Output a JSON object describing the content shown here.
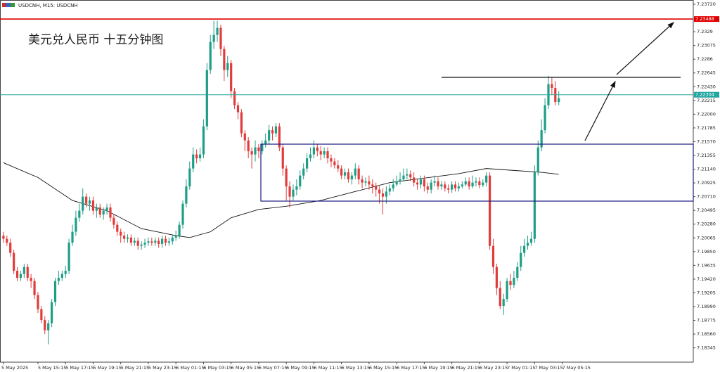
{
  "chart_data": {
    "type": "candlestick",
    "header": "USDCNH, M15:  USDCNH",
    "annotation": "美元兑人民币 十五分钟图",
    "up_color": "#1e9e86",
    "down_color": "#e23b3b",
    "xlim": [
      -1,
      200
    ],
    "ylim": [
      7.18121,
      7.23786
    ],
    "xticks": [
      {
        "value": 0,
        "label": "5 May 2025"
      },
      {
        "value": 10,
        "label": "5 May 15:15"
      },
      {
        "value": 18,
        "label": "5 May 17:15"
      },
      {
        "value": 26,
        "label": "5 May 19:15"
      },
      {
        "value": 34,
        "label": "5 May 21:15"
      },
      {
        "value": 42,
        "label": "5 May 23:15"
      },
      {
        "value": 50,
        "label": "6 May 01:15"
      },
      {
        "value": 58,
        "label": "6 May 03:15"
      },
      {
        "value": 66,
        "label": "6 May 05:15"
      },
      {
        "value": 74,
        "label": "6 May 07:15"
      },
      {
        "value": 82,
        "label": "6 May 09:15"
      },
      {
        "value": 90,
        "label": "6 May 11:15"
      },
      {
        "value": 98,
        "label": "6 May 13:15"
      },
      {
        "value": 106,
        "label": "6 May 15:15"
      },
      {
        "value": 114,
        "label": "6 May 17:15"
      },
      {
        "value": 122,
        "label": "6 May 19:15"
      },
      {
        "value": 130,
        "label": "6 May 21:15"
      },
      {
        "value": 138,
        "label": "6 May 23:15"
      },
      {
        "value": 146,
        "label": "7 May 01:15"
      },
      {
        "value": 154,
        "label": "7 May 03:15"
      },
      {
        "value": 162,
        "label": "7 May 05:15"
      }
    ],
    "yticks": [
      {
        "value": 7.2372,
        "label": "7.23720"
      },
      7.2329,
      7.23075,
      7.2286,
      7.22645,
      {
        "value": 7.2243,
        "label": "7.22430"
      },
      7.22215,
      {
        "value": 7.22,
        "label": "7.22000"
      },
      7.21785,
      {
        "value": 7.2157,
        "label": "7.21570"
      },
      7.21355,
      {
        "value": 7.2114,
        "label": "7.21140"
      },
      7.20925,
      {
        "value": 7.2071,
        "label": "7.20710"
      },
      7.20495,
      {
        "value": 7.2028,
        "label": "7.20280"
      },
      7.20065,
      {
        "value": 7.1985,
        "label": "7.19850"
      },
      7.19635,
      {
        "value": 7.1942,
        "label": "7.19420"
      },
      7.19205,
      {
        "value": 7.1899,
        "label": "7.18990"
      },
      7.18775,
      {
        "value": 7.1856,
        "label": "7.18560"
      },
      7.18345
    ],
    "resistance_line": 7.23488,
    "resistance_color": "#e00000",
    "price_line": 7.22304,
    "price_color": "#22a6a0",
    "open": [
      7.201,
      7.2005,
      7.1999,
      7.1983,
      7.1955,
      7.1944,
      7.195,
      7.1961,
      7.1944,
      7.1939,
      7.1917,
      7.1895,
      7.1878,
      7.1862,
      7.1873,
      7.1906,
      7.1939,
      7.1944,
      7.195,
      7.1955,
      7.1999,
      7.2016,
      7.2038,
      7.2049,
      7.2071,
      7.206,
      7.2065,
      7.2049,
      7.2054,
      7.2043,
      7.2049,
      7.2054,
      7.2038,
      7.2027,
      7.2016,
      7.201,
      7.2005,
      7.2007,
      7.1999,
      7.2002,
      7.1994,
      7.1996,
      7.1999,
      7.2001,
      7.1999,
      7.2002,
      7.1997,
      7.2005,
      7.1999,
      7.2001,
      7.2007,
      7.201,
      7.2027,
      7.206,
      7.2087,
      7.2115,
      7.2137,
      7.2131,
      7.2137,
      7.2181,
      7.2269,
      7.2313,
      7.2324,
      7.2335,
      7.2302,
      7.2269,
      7.228,
      7.2236,
      7.2214,
      7.2203,
      7.217,
      7.2159,
      7.2142,
      7.2137,
      7.2148,
      7.2142,
      7.2153,
      7.2159,
      7.2175,
      7.217,
      7.2181,
      7.2148,
      7.2115,
      7.2087,
      7.2071,
      7.2082,
      7.2087,
      7.2104,
      7.2115,
      7.2131,
      7.2137,
      7.2148,
      7.2142,
      7.2137,
      7.2142,
      7.2131,
      7.2126,
      7.212,
      7.2115,
      7.2104,
      7.2109,
      7.2098,
      7.2104,
      7.2115,
      7.2098,
      7.2093,
      7.2095,
      7.209,
      7.2087,
      7.2082,
      7.2076,
      7.2071,
      7.2079,
      7.2084,
      7.209,
      7.2095,
      7.2098,
      7.2104,
      7.2106,
      7.2101,
      7.2093,
      7.209,
      7.2098,
      7.2087,
      7.2082,
      7.2093,
      7.2095,
      7.2087,
      7.209,
      7.2084,
      7.2082,
      7.209,
      7.2084,
      7.2087,
      7.209,
      7.2095,
      7.2087,
      7.2093,
      7.2095,
      7.2089,
      7.2093,
      7.2104,
      7.1994,
      7.1961,
      7.1928,
      7.19,
      7.1911,
      7.1939,
      7.1933,
      7.1944,
      7.1961,
      7.1983,
      7.1994,
      7.1999,
      7.2005,
      7.2109,
      7.2148,
      7.2175,
      7.2214,
      7.2247,
      7.2241,
      7.2219
    ],
    "high": [
      7.2016,
      7.201,
      7.2005,
      7.1988,
      7.1961,
      7.1955,
      7.1966,
      7.1966,
      7.195,
      7.1944,
      7.1922,
      7.19,
      7.1884,
      7.1878,
      7.1911,
      7.1944,
      7.1955,
      7.1955,
      7.1963,
      7.2005,
      7.2027,
      7.2049,
      7.206,
      7.2084,
      7.2076,
      7.2071,
      7.2071,
      7.206,
      7.206,
      7.2054,
      7.206,
      7.206,
      7.2043,
      7.2032,
      7.2021,
      7.2016,
      7.2012,
      7.2012,
      7.2007,
      7.2007,
      7.2001,
      7.2005,
      7.2007,
      7.2007,
      7.2007,
      7.2007,
      7.201,
      7.201,
      7.2007,
      7.2012,
      7.2018,
      7.2032,
      7.2065,
      7.2098,
      7.2126,
      7.2148,
      7.2145,
      7.2148,
      7.2192,
      7.228,
      7.2324,
      7.2346,
      7.2346,
      7.234,
      7.2307,
      7.2291,
      7.2285,
      7.2241,
      7.2219,
      7.2208,
      7.2175,
      7.2164,
      7.2148,
      7.2159,
      7.2153,
      7.2159,
      7.217,
      7.2183,
      7.2181,
      7.2186,
      7.2186,
      7.2153,
      7.212,
      7.2095,
      7.209,
      7.2098,
      7.2112,
      7.2123,
      7.2139,
      7.2148,
      7.2159,
      7.2153,
      7.215,
      7.2148,
      7.2148,
      7.2137,
      7.2131,
      7.2128,
      7.212,
      7.2115,
      7.2115,
      7.2109,
      7.2123,
      7.212,
      7.2104,
      7.2101,
      7.2104,
      7.2098,
      7.2093,
      7.2087,
      7.2084,
      7.2087,
      7.209,
      7.2098,
      7.2104,
      7.2109,
      7.2115,
      7.2115,
      7.2112,
      7.2109,
      7.2098,
      7.2104,
      7.2104,
      7.2093,
      7.2098,
      7.2104,
      7.2101,
      7.2095,
      7.2095,
      7.209,
      7.2095,
      7.2095,
      7.2093,
      7.2095,
      7.2101,
      7.2101,
      7.2104,
      7.2101,
      7.2101,
      7.2098,
      7.2109,
      7.2109,
      7.2005,
      7.1966,
      7.1939,
      7.1919,
      7.1944,
      7.195,
      7.1955,
      7.1969,
      7.1994,
      7.2005,
      7.201,
      7.2016,
      7.212,
      7.2159,
      7.2192,
      7.2225,
      7.226,
      7.2258,
      7.2252,
      7.2236
    ],
    "low": [
      7.1999,
      7.1994,
      7.1977,
      7.195,
      7.1939,
      7.1939,
      7.1944,
      7.1939,
      7.1928,
      7.1911,
      7.1889,
      7.1873,
      7.1856,
      7.184,
      7.1867,
      7.19,
      7.1933,
      7.1939,
      7.1944,
      7.195,
      7.1994,
      7.201,
      7.2032,
      7.2043,
      7.2054,
      7.2049,
      7.2043,
      7.2038,
      7.2038,
      7.2035,
      7.2043,
      7.2032,
      7.2021,
      7.201,
      7.1999,
      7.1999,
      7.1999,
      7.1994,
      7.1994,
      7.1988,
      7.1988,
      7.1991,
      7.1994,
      7.1994,
      7.1994,
      7.1991,
      7.1991,
      7.1994,
      7.1994,
      7.1996,
      7.2002,
      7.2005,
      7.2021,
      7.2054,
      7.2082,
      7.2109,
      7.2123,
      7.2126,
      7.2131,
      7.2175,
      7.2263,
      7.2302,
      7.2313,
      7.2291,
      7.2252,
      7.2258,
      7.2225,
      7.2208,
      7.2192,
      7.2164,
      7.2142,
      7.2131,
      7.2115,
      7.2126,
      7.2131,
      7.2137,
      7.2148,
      7.2153,
      7.2159,
      7.2164,
      7.2142,
      7.2104,
      7.2065,
      7.2054,
      7.2065,
      7.2073,
      7.2082,
      7.2098,
      7.2109,
      7.2126,
      7.2131,
      7.2134,
      7.2128,
      7.2131,
      7.2123,
      7.2117,
      7.2115,
      7.2109,
      7.2098,
      7.2098,
      7.2093,
      7.209,
      7.2098,
      7.209,
      7.2084,
      7.2087,
      7.2082,
      7.2076,
      7.2071,
      7.206,
      7.2043,
      7.206,
      7.2073,
      7.2079,
      7.2087,
      7.209,
      7.2095,
      7.2098,
      7.2095,
      7.2087,
      7.2082,
      7.2084,
      7.2079,
      7.2076,
      7.2076,
      7.2087,
      7.2082,
      7.2082,
      7.2079,
      7.2076,
      7.2077,
      7.2079,
      7.2079,
      7.2084,
      7.2087,
      7.2082,
      7.2084,
      7.2087,
      7.2084,
      7.2086,
      7.2087,
      7.1988,
      7.195,
      7.1917,
      7.1895,
      7.1886,
      7.1906,
      7.1925,
      7.1928,
      7.1939,
      7.1955,
      7.1977,
      7.1988,
      7.1994,
      7.1999,
      7.2104,
      7.2142,
      7.217,
      7.2208,
      7.223,
      7.2214,
      7.2214
    ],
    "close": [
      7.2005,
      7.1999,
      7.1983,
      7.1955,
      7.1944,
      7.195,
      7.1961,
      7.1944,
      7.1939,
      7.1917,
      7.1895,
      7.1878,
      7.1862,
      7.1873,
      7.1906,
      7.1939,
      7.1944,
      7.195,
      7.1955,
      7.1999,
      7.2016,
      7.2038,
      7.2049,
      7.2071,
      7.206,
      7.2065,
      7.2049,
      7.2054,
      7.2043,
      7.2049,
      7.2054,
      7.2038,
      7.2027,
      7.2016,
      7.201,
      7.2005,
      7.2007,
      7.1999,
      7.2002,
      7.1994,
      7.1996,
      7.1999,
      7.2001,
      7.1999,
      7.2002,
      7.1997,
      7.2005,
      7.1999,
      7.2001,
      7.2007,
      7.201,
      7.2027,
      7.206,
      7.2087,
      7.2115,
      7.2137,
      7.2131,
      7.2137,
      7.2181,
      7.2269,
      7.2313,
      7.2324,
      7.2335,
      7.2302,
      7.2269,
      7.228,
      7.2236,
      7.2214,
      7.2203,
      7.217,
      7.2159,
      7.2142,
      7.2137,
      7.2148,
      7.2142,
      7.2153,
      7.2159,
      7.2175,
      7.217,
      7.2181,
      7.2148,
      7.2115,
      7.2087,
      7.2071,
      7.2082,
      7.2087,
      7.2104,
      7.2115,
      7.2131,
      7.2137,
      7.2148,
      7.2142,
      7.2137,
      7.2142,
      7.2131,
      7.2126,
      7.212,
      7.2115,
      7.2104,
      7.2109,
      7.2098,
      7.2104,
      7.2115,
      7.2098,
      7.2093,
      7.2095,
      7.209,
      7.2087,
      7.2082,
      7.2076,
      7.2071,
      7.2079,
      7.2084,
      7.209,
      7.2095,
      7.2098,
      7.2104,
      7.2106,
      7.2101,
      7.2093,
      7.209,
      7.2098,
      7.2087,
      7.2082,
      7.2093,
      7.2095,
      7.2087,
      7.209,
      7.2084,
      7.2082,
      7.209,
      7.2084,
      7.2087,
      7.209,
      7.2095,
      7.2087,
      7.2093,
      7.2095,
      7.2089,
      7.2093,
      7.2104,
      7.1994,
      7.1961,
      7.1928,
      7.19,
      7.1911,
      7.1939,
      7.1933,
      7.1944,
      7.1961,
      7.1983,
      7.1994,
      7.1999,
      7.2005,
      7.2109,
      7.2148,
      7.2175,
      7.2214,
      7.2247,
      7.2241,
      7.2219,
      7.2225
    ],
    "ma": {
      "color": "#111111",
      "x": [
        0,
        10,
        20,
        30,
        40,
        50,
        54,
        60,
        66,
        74,
        82,
        92,
        102,
        112,
        122,
        132,
        140,
        148,
        156,
        161
      ],
      "values": [
        7.2124,
        7.2101,
        7.2065,
        7.2049,
        7.2021,
        7.201,
        7.2007,
        7.2016,
        7.2038,
        7.2051,
        7.2056,
        7.2065,
        7.2079,
        7.2093,
        7.21,
        7.2107,
        7.2115,
        7.2112,
        7.2109,
        7.2106
      ]
    }
  }
}
